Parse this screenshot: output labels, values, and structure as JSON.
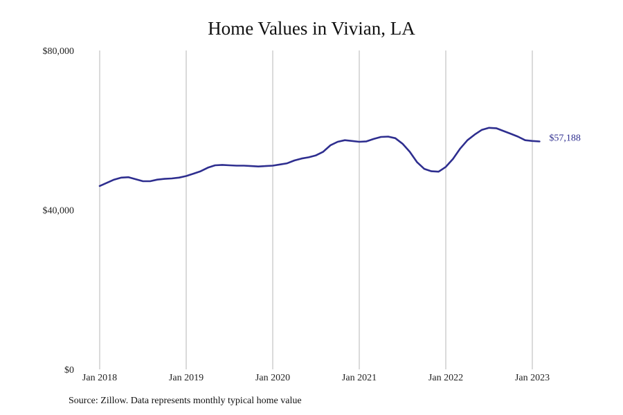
{
  "chart_data": {
    "type": "line",
    "title": "Home Values in Vivian, LA",
    "xlabel": "",
    "ylabel": "",
    "ylim": [
      0,
      80000
    ],
    "y_ticks": [
      {
        "value": 0,
        "label": "$0"
      },
      {
        "value": 40000,
        "label": "$40,000"
      },
      {
        "value": 80000,
        "label": "$80,000"
      }
    ],
    "x_ticks": [
      {
        "value": "2018-01",
        "label": "Jan 2018"
      },
      {
        "value": "2019-01",
        "label": "Jan 2019"
      },
      {
        "value": "2020-01",
        "label": "Jan 2020"
      },
      {
        "value": "2021-01",
        "label": "Jan 2021"
      },
      {
        "value": "2022-01",
        "label": "Jan 2022"
      },
      {
        "value": "2023-01",
        "label": "Jan 2023"
      }
    ],
    "grid": "vertical",
    "line_color": "#2e2e8f",
    "end_label": "$57,188",
    "series": [
      {
        "x": [
          "2018-01",
          "2018-02",
          "2018-03",
          "2018-04",
          "2018-05",
          "2018-06",
          "2018-07",
          "2018-08",
          "2018-09",
          "2018-10",
          "2018-11",
          "2018-12",
          "2019-01",
          "2019-02",
          "2019-03",
          "2019-04",
          "2019-05",
          "2019-06",
          "2019-07",
          "2019-08",
          "2019-09",
          "2019-10",
          "2019-11",
          "2019-12",
          "2020-01",
          "2020-02",
          "2020-03",
          "2020-04",
          "2020-05",
          "2020-06",
          "2020-07",
          "2020-08",
          "2020-09",
          "2020-10",
          "2020-11",
          "2020-12",
          "2021-01",
          "2021-02",
          "2021-03",
          "2021-04",
          "2021-05",
          "2021-06",
          "2021-07",
          "2021-08",
          "2021-09",
          "2021-10",
          "2021-11",
          "2021-12",
          "2022-01",
          "2022-02",
          "2022-03",
          "2022-04",
          "2022-05",
          "2022-06",
          "2022-07",
          "2022-08",
          "2022-09",
          "2022-10",
          "2022-11",
          "2022-12",
          "2023-01",
          "2023-02"
        ],
        "values": [
          46000,
          46800,
          47600,
          48100,
          48200,
          47700,
          47200,
          47200,
          47600,
          47800,
          47900,
          48100,
          48500,
          49100,
          49700,
          50600,
          51200,
          51300,
          51200,
          51100,
          51100,
          51000,
          50900,
          51000,
          51100,
          51400,
          51700,
          52400,
          52900,
          53200,
          53700,
          54600,
          56200,
          57100,
          57500,
          57300,
          57100,
          57200,
          57800,
          58300,
          58400,
          58000,
          56600,
          54600,
          52000,
          50300,
          49700,
          49600,
          50800,
          52800,
          55400,
          57500,
          58900,
          60100,
          60600,
          60500,
          59800,
          59100,
          58400,
          57500,
          57300,
          57188
        ]
      }
    ]
  },
  "source": "Source: Zillow. Data represents monthly typical home value"
}
